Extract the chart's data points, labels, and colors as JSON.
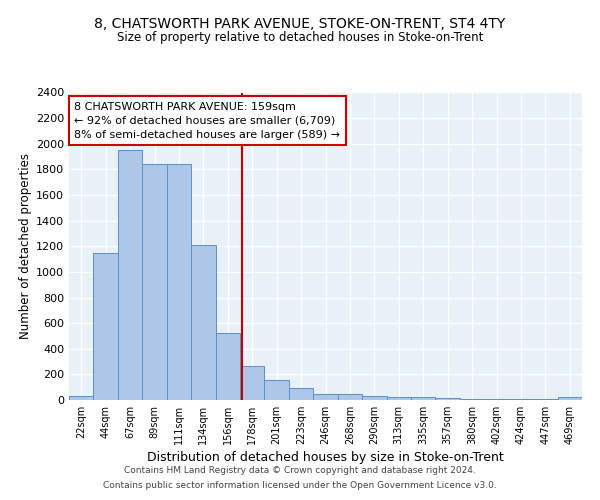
{
  "title": "8, CHATSWORTH PARK AVENUE, STOKE-ON-TRENT, ST4 4TY",
  "subtitle": "Size of property relative to detached houses in Stoke-on-Trent",
  "xlabel": "Distribution of detached houses by size in Stoke-on-Trent",
  "ylabel": "Number of detached properties",
  "bin_labels": [
    "22sqm",
    "44sqm",
    "67sqm",
    "89sqm",
    "111sqm",
    "134sqm",
    "156sqm",
    "178sqm",
    "201sqm",
    "223sqm",
    "246sqm",
    "268sqm",
    "290sqm",
    "313sqm",
    "335sqm",
    "357sqm",
    "380sqm",
    "402sqm",
    "424sqm",
    "447sqm",
    "469sqm"
  ],
  "bar_values": [
    30,
    1150,
    1950,
    1840,
    1840,
    1210,
    520,
    265,
    155,
    90,
    50,
    45,
    35,
    20,
    20,
    15,
    10,
    5,
    5,
    5,
    20
  ],
  "bar_color": "#aec6e8",
  "bar_edge_color": "#5b8fc9",
  "property_line_bin_index": 6.57,
  "red_line_color": "#cc0000",
  "annotation_text": "8 CHATSWORTH PARK AVENUE: 159sqm\n← 92% of detached houses are smaller (6,709)\n8% of semi-detached houses are larger (589) →",
  "annotation_box_color": "#ffffff",
  "annotation_box_edge": "#cc0000",
  "footer_line1": "Contains HM Land Registry data © Crown copyright and database right 2024.",
  "footer_line2": "Contains public sector information licensed under the Open Government Licence v3.0.",
  "ylim": [
    0,
    2400
  ],
  "yticks": [
    0,
    200,
    400,
    600,
    800,
    1000,
    1200,
    1400,
    1600,
    1800,
    2000,
    2200,
    2400
  ],
  "bg_color": "#e8f0f8",
  "fig_bg_color": "#ffffff",
  "grid_color": "#ffffff"
}
